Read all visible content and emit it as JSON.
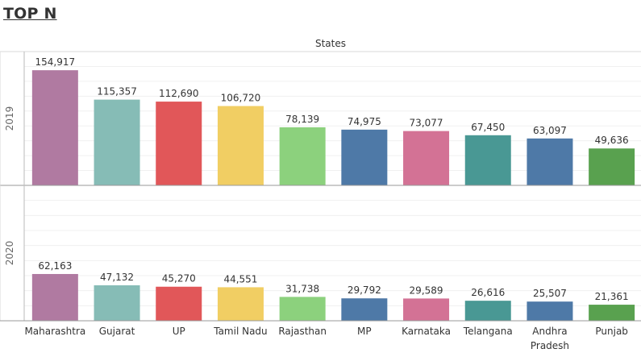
{
  "page": {
    "title": "TOP N"
  },
  "chart_data": {
    "type": "bar",
    "column_header": "States",
    "categories": [
      "Maharashtra",
      "Gujarat",
      "UP",
      "Tamil Nadu",
      "Rajasthan",
      "MP",
      "Karnataka",
      "Telangana",
      "Andhra Pradesh",
      "Punjab"
    ],
    "category_label_lines": [
      [
        "Maharashtra"
      ],
      [
        "Gujarat"
      ],
      [
        "UP"
      ],
      [
        "Tamil Nadu"
      ],
      [
        "Rajasthan"
      ],
      [
        "MP"
      ],
      [
        "Karnataka"
      ],
      [
        "Telangana"
      ],
      [
        "Andhra",
        "Pradesh"
      ],
      [
        "Punjab"
      ]
    ],
    "colors": [
      "#b07aa1",
      "#86bcb6",
      "#e15759",
      "#f1ce63",
      "#8cd17d",
      "#4e79a7",
      "#d37295",
      "#499894",
      "#4e79a7",
      "#59a14f"
    ],
    "ylim": [
      0,
      180000
    ],
    "grid": true,
    "legend": "none",
    "series": [
      {
        "name": "2019",
        "values": [
          154917,
          115357,
          112690,
          106720,
          78139,
          74975,
          73077,
          67450,
          63097,
          49636
        ],
        "labels": [
          "154,917",
          "115,357",
          "112,690",
          "106,720",
          "78,139",
          "74,975",
          "73,077",
          "67,450",
          "63,097",
          "49,636"
        ]
      },
      {
        "name": "2020",
        "values": [
          62163,
          47132,
          45270,
          44551,
          31738,
          29792,
          29589,
          26616,
          25507,
          21361
        ],
        "labels": [
          "62,163",
          "47,132",
          "45,270",
          "44,551",
          "31,738",
          "29,792",
          "29,589",
          "26,616",
          "25,507",
          "21,361"
        ]
      }
    ]
  }
}
